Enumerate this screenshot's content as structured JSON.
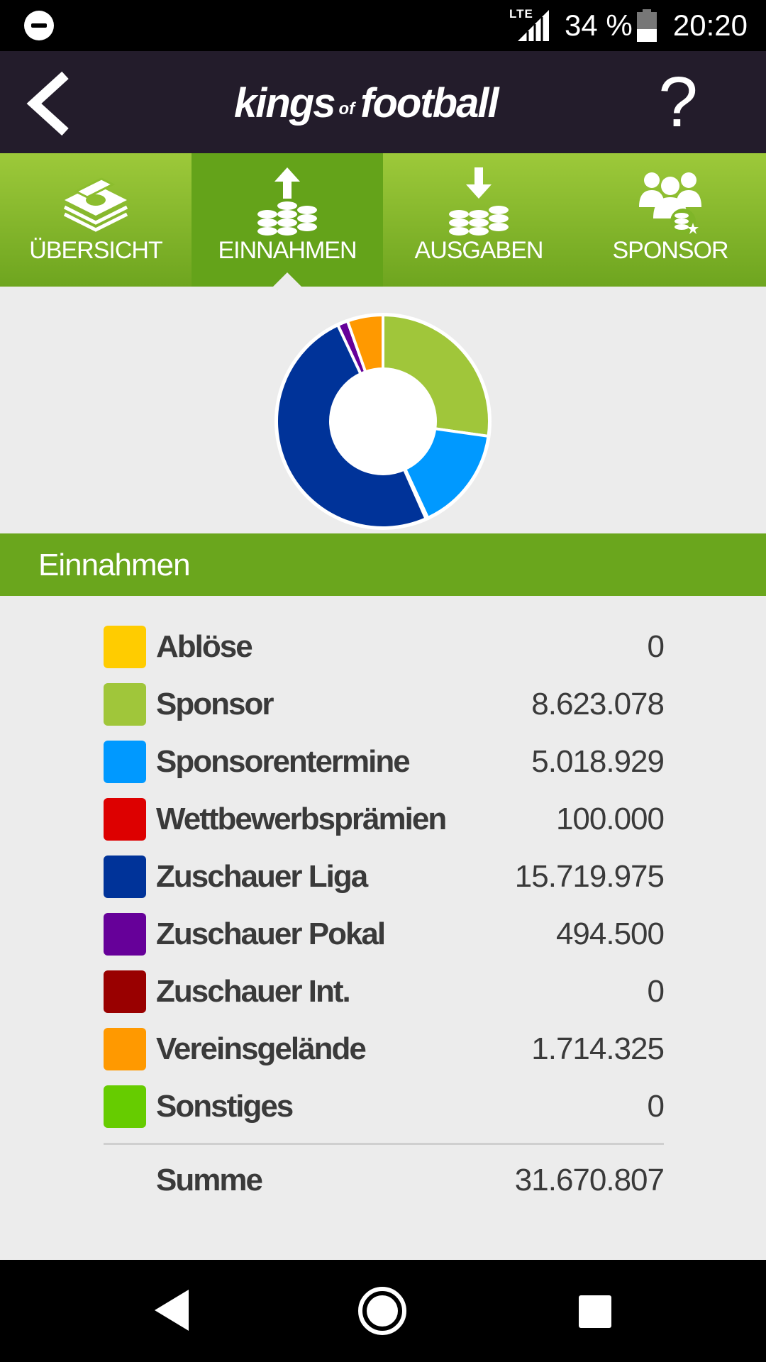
{
  "status_bar": {
    "network": "LTE",
    "battery": "34 %",
    "time": "20:20",
    "icons": [
      "do-not-disturb-icon",
      "signal-icon",
      "battery-icon"
    ]
  },
  "header": {
    "logo_kings": "kings",
    "logo_of": "of",
    "logo_football": "football",
    "help_label": "?",
    "icons": [
      "back-arrow-icon"
    ]
  },
  "tabs": [
    {
      "label": "ÜBERSICHT",
      "icon": "money-stack-icon",
      "active": false
    },
    {
      "label": "EINNAHMEN",
      "icon": "coins-up-icon",
      "active": true
    },
    {
      "label": "AUSGABEN",
      "icon": "coins-down-icon",
      "active": false
    },
    {
      "label": "SPONSOR",
      "icon": "people-coins-icon",
      "active": false
    }
  ],
  "section": {
    "title": "Einnahmen"
  },
  "rows": [
    {
      "label": "Ablöse",
      "value": "0",
      "color": "#ffcc00"
    },
    {
      "label": "Sponsor",
      "value": "8.623.078",
      "color": "#a0c63a"
    },
    {
      "label": "Sponsorentermine",
      "value": "5.018.929",
      "color": "#0099ff"
    },
    {
      "label": "Wettbewerbsprämien",
      "value": "100.000",
      "color": "#dd0000"
    },
    {
      "label": "Zuschauer Liga",
      "value": "15.719.975",
      "color": "#003399"
    },
    {
      "label": "Zuschauer Pokal",
      "value": "494.500",
      "color": "#660099"
    },
    {
      "label": "Zuschauer Int.",
      "value": "0",
      "color": "#990000"
    },
    {
      "label": "Vereinsgelände",
      "value": "1.714.325",
      "color": "#ff9900"
    },
    {
      "label": "Sonstiges",
      "value": "0",
      "color": "#66cc00"
    }
  ],
  "total": {
    "label": "Summe",
    "value": "31.670.807"
  },
  "nav": {
    "icons": [
      "nav-back-icon",
      "nav-home-icon",
      "nav-recents-icon"
    ]
  },
  "chart_data": {
    "type": "pie",
    "variant": "donut",
    "categories": [
      "Ablöse",
      "Sponsor",
      "Sponsorentermine",
      "Wettbewerbsprämien",
      "Zuschauer Liga",
      "Zuschauer Pokal",
      "Zuschauer Int.",
      "Vereinsgelände",
      "Sonstiges"
    ],
    "values": [
      0,
      8623078,
      5018929,
      100000,
      15719975,
      494500,
      0,
      1714325,
      0
    ],
    "colors": [
      "#ffcc00",
      "#a0c63a",
      "#0099ff",
      "#dd0000",
      "#003399",
      "#660099",
      "#990000",
      "#ff9900",
      "#66cc00"
    ]
  }
}
